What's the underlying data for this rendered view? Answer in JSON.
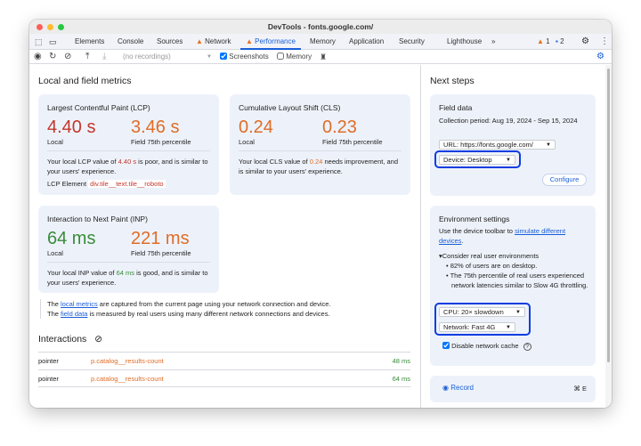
{
  "window": {
    "title": "DevTools - fonts.google.com/"
  },
  "tabs": [
    {
      "label": "Elements"
    },
    {
      "label": "Console"
    },
    {
      "label": "Sources"
    },
    {
      "label": "Network",
      "warning": true
    },
    {
      "label": "Performance",
      "warning": true,
      "active": true
    },
    {
      "label": "Memory"
    },
    {
      "label": "Application"
    },
    {
      "label": "Security"
    },
    {
      "label": "Lighthouse"
    }
  ],
  "badges": {
    "warnings": "1",
    "messages": "2"
  },
  "toolbar": {
    "recordings": "(no recordings)",
    "screenshots": "Screenshots",
    "screenshots_checked": true,
    "memory": "Memory",
    "memory_checked": false
  },
  "left": {
    "title": "Local and field metrics",
    "lcp": {
      "title": "Largest Contentful Paint (LCP)",
      "local": "4.40 s",
      "field": "3.46 s",
      "local_label": "Local",
      "field_label": "Field 75th percentile",
      "desc_pre": "Your local LCP value of ",
      "desc_val": "4.40 s",
      "desc_post": " is poor, and is similar to your users' experience.",
      "element_label": "LCP Element",
      "element": "div.tile__text.tile__roboto"
    },
    "cls": {
      "title": "Cumulative Layout Shift (CLS)",
      "local": "0.24",
      "field": "0.23",
      "local_label": "Local",
      "field_label": "Field 75th percentile",
      "desc_pre": "Your local CLS value of ",
      "desc_val": "0.24",
      "desc_post": " needs improvement, and is similar to your users' experience."
    },
    "inp": {
      "title": "Interaction to Next Paint (INP)",
      "local": "64 ms",
      "field": "221 ms",
      "local_label": "Local",
      "field_label": "Field 75th percentile",
      "desc_pre": "Your local INP value of ",
      "desc_val": "64 ms",
      "desc_post": " is good, and is similar to your users' experience."
    },
    "foot": {
      "l1_pre": "The ",
      "l1_link": "local metrics",
      "l1_post": " are captured from the current page using your network connection and device.",
      "l2_pre": "The ",
      "l2_link": "field data",
      "l2_post": " is measured by real users using many different network connections and devices."
    },
    "interactions": {
      "title": "Interactions",
      "rows": [
        {
          "type": "pointer",
          "target": "p.catalog__results-count",
          "time": "48 ms"
        },
        {
          "type": "pointer",
          "target": "p.catalog__results-count",
          "time": "64 ms"
        }
      ]
    }
  },
  "right": {
    "title": "Next steps",
    "field": {
      "title": "Field data",
      "period": "Collection period: Aug 19, 2024 - Sep 15, 2024",
      "url": "URL: https://fonts.google.com/",
      "device": "Device: Desktop",
      "configure": "Configure"
    },
    "env": {
      "title": "Environment settings",
      "desc_pre": "Use the device toolbar to ",
      "desc_link": "simulate different devices",
      "desc_post": ".",
      "consider": "Consider real user environments",
      "bullets": [
        "82% of users are on desktop.",
        "The 75th percentile of real users experienced network latencies similar to Slow 4G throttling."
      ],
      "cpu": "CPU: 20× slowdown",
      "network": "Network: Fast 4G",
      "cache": "Disable network cache",
      "cache_checked": true
    },
    "record": {
      "label": "Record",
      "shortcut": "⌘ E"
    }
  },
  "colors": {
    "accent": "#1a5ed8",
    "poor": "#c5352b",
    "needs_improvement": "#e06c26",
    "good": "#3a8b3a",
    "highlight": "#0d3de0"
  }
}
